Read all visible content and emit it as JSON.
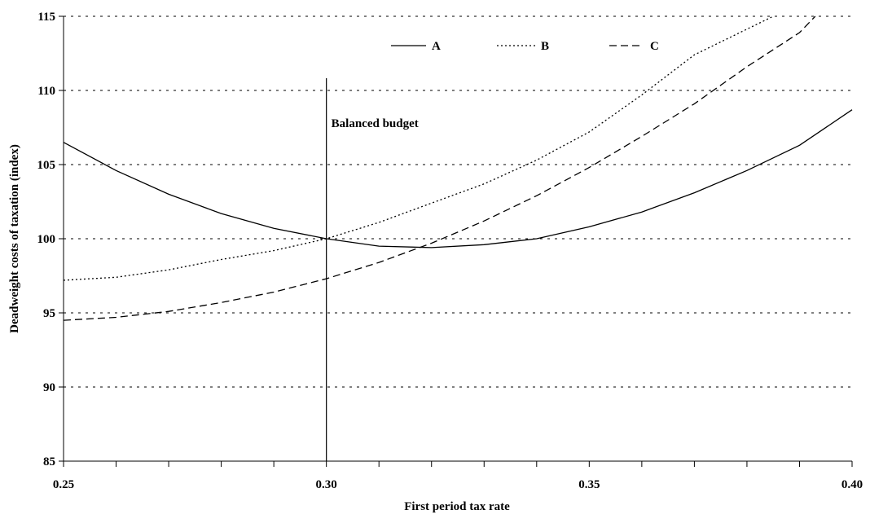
{
  "chart_data": {
    "type": "line",
    "title": "",
    "xlabel": "First period tax rate",
    "ylabel": "Deadweight costs of taxation (index)",
    "xlim": [
      0.25,
      0.4
    ],
    "ylim": [
      85,
      115
    ],
    "x_tick_labels": [
      "0.25",
      "0.30",
      "0.35",
      "0.40"
    ],
    "x_major_ticks": [
      0.25,
      0.3,
      0.35,
      0.4
    ],
    "x_minor_tick_step": 0.01,
    "y_tick_labels": [
      "85",
      "90",
      "95",
      "100",
      "105",
      "110",
      "115"
    ],
    "y_ticks": [
      85,
      90,
      95,
      100,
      105,
      110,
      115
    ],
    "grid": "horizontal dotted",
    "legend_placement": "top",
    "x": [
      0.25,
      0.26,
      0.27,
      0.28,
      0.29,
      0.3,
      0.31,
      0.32,
      0.33,
      0.34,
      0.35,
      0.36,
      0.37,
      0.38,
      0.385,
      0.39,
      0.393,
      0.4
    ],
    "series": [
      {
        "name": "A",
        "style": "solid",
        "color": "#000000",
        "values": [
          106.5,
          104.6,
          103.0,
          101.7,
          100.7,
          100.0,
          99.5,
          99.4,
          99.6,
          100.0,
          100.8,
          101.8,
          103.1,
          104.6,
          null,
          106.3,
          null,
          108.7
        ]
      },
      {
        "name": "B",
        "style": "dotted",
        "color": "#000000",
        "values": [
          97.2,
          97.4,
          97.9,
          98.6,
          99.2,
          100.0,
          101.1,
          102.4,
          103.7,
          105.3,
          107.2,
          109.7,
          112.4,
          null,
          115.0,
          null,
          null,
          null
        ]
      },
      {
        "name": "C",
        "style": "dashed",
        "color": "#000000",
        "values": [
          94.5,
          94.7,
          95.1,
          95.7,
          96.4,
          97.3,
          98.4,
          99.7,
          101.2,
          102.9,
          104.8,
          106.9,
          109.1,
          111.6,
          null,
          113.9,
          115.0,
          null
        ]
      }
    ],
    "annotations": [
      {
        "text": "Balanced budget",
        "x": 0.3,
        "type": "vertical-line"
      }
    ]
  }
}
